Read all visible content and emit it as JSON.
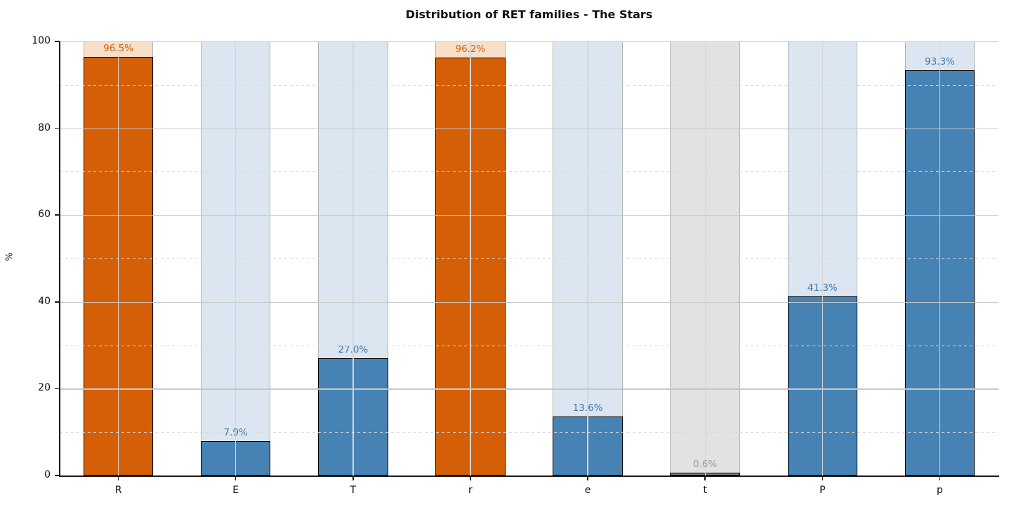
{
  "chart_data": {
    "type": "bar",
    "title": "Distribution of RET families - The Stars",
    "xlabel": "",
    "ylabel": "%",
    "ylim": [
      0,
      100
    ],
    "grid": "on",
    "legend": "none",
    "yticks": [
      {
        "value": 0,
        "label": "0"
      },
      {
        "value": 20,
        "label": "20"
      },
      {
        "value": 40,
        "label": "40"
      },
      {
        "value": 60,
        "label": "60"
      },
      {
        "value": 80,
        "label": "80"
      },
      {
        "value": 100,
        "label": "100"
      }
    ],
    "major_gridlines": [
      20,
      40,
      60,
      80,
      100
    ],
    "minor_gridlines": [
      10,
      30,
      50,
      70,
      90
    ],
    "categories": [
      "R",
      "E",
      "T",
      "r",
      "e",
      "t",
      "P",
      "p"
    ],
    "values": [
      96.5,
      7.9,
      27.0,
      96.2,
      13.6,
      0.6,
      41.3,
      93.3
    ],
    "value_labels": [
      "96.5%",
      "7.9%",
      "27.0%",
      "96.2%",
      "13.6%",
      "0.6%",
      "41.3%",
      "93.3%"
    ],
    "bar_colors": [
      "#d45f06",
      "#4682b4",
      "#4682b4",
      "#d45f06",
      "#4682b4",
      "#7f7f7f",
      "#4682b4",
      "#4682b4"
    ],
    "bar_bg_colors": [
      "#f7dfc9",
      "#dbe6f0",
      "#dbe6f0",
      "#f7dfc9",
      "#dbe6f0",
      "#e2e2e2",
      "#dbe6f0",
      "#dbe6f0"
    ],
    "label_colors": [
      "#d4600a",
      "#4377a9",
      "#4377a9",
      "#d4600a",
      "#4377a9",
      "#9b9b9b",
      "#4377a9",
      "#4377a9"
    ],
    "accent_colors": {
      "orange": "#d45f06",
      "blue": "#4682b4",
      "gray": "#7f7f7f"
    }
  }
}
